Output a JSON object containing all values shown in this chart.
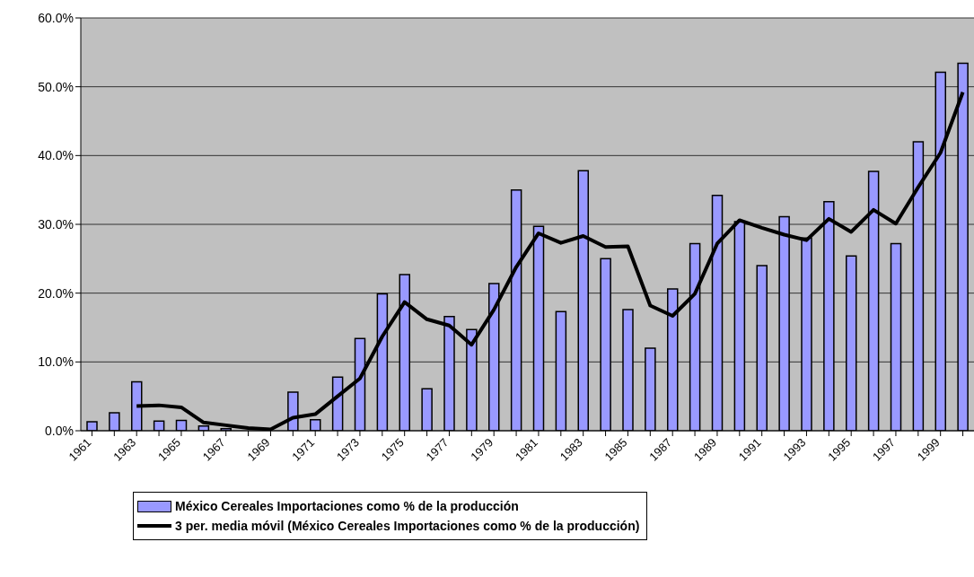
{
  "chart_data": {
    "type": "bar",
    "categories": [
      "1961",
      null,
      "1963",
      null,
      "1965",
      null,
      "1967",
      null,
      "1969",
      null,
      "1971",
      null,
      "1973",
      null,
      "1975",
      null,
      "1977",
      null,
      "1979",
      null,
      "1981",
      null,
      "1983",
      null,
      "1985",
      null,
      "1987",
      null,
      "1989",
      null,
      "1991",
      null,
      "1993",
      null,
      "1995",
      null,
      "1997",
      null,
      "1999",
      null
    ],
    "series": [
      {
        "name": "México Cereales  Importaciones como % de la producción",
        "color": "#9999ff",
        "values": [
          1.3,
          2.6,
          7.1,
          1.4,
          1.5,
          0.7,
          0.3,
          null,
          null,
          5.6,
          1.6,
          7.8,
          13.4,
          19.9,
          22.7,
          6.1,
          16.6,
          14.7,
          21.4,
          35.0,
          29.7,
          17.3,
          37.8,
          25.0,
          17.6,
          12.0,
          20.6,
          27.2,
          34.2,
          30.4,
          24.0,
          31.1,
          28.0,
          33.3,
          25.4,
          37.7,
          27.2,
          42.0,
          52.1,
          53.4
        ]
      },
      {
        "name": "3 per. media móvil (México Cereales  Importaciones como % de la producción)",
        "type": "line",
        "color": "#000000",
        "values": [
          null,
          null,
          3.6,
          3.7,
          3.4,
          1.2,
          0.8,
          0.4,
          0.2,
          1.9,
          2.4,
          5.0,
          7.6,
          13.7,
          18.7,
          16.2,
          15.3,
          12.5,
          17.6,
          23.8,
          28.7,
          27.3,
          28.3,
          26.7,
          26.8,
          18.2,
          16.7,
          19.9,
          27.2,
          30.6,
          29.5,
          28.5,
          27.7,
          30.8,
          28.9,
          32.1,
          30.1,
          35.4,
          40.4,
          49.2
        ]
      }
    ],
    "ylim": [
      0,
      60
    ],
    "yticks": [
      {
        "value": 0,
        "label": "0.0%"
      },
      {
        "value": 10,
        "label": "10.0%"
      },
      {
        "value": 20,
        "label": "20.0%"
      },
      {
        "value": 30,
        "label": "30.0%"
      },
      {
        "value": 40,
        "label": "40.0%"
      },
      {
        "value": 50,
        "label": "50.0%"
      },
      {
        "value": 60,
        "label": "60.0%"
      }
    ],
    "grid": "y",
    "legend": "bottom",
    "marker": "none",
    "line_style": "solid"
  }
}
